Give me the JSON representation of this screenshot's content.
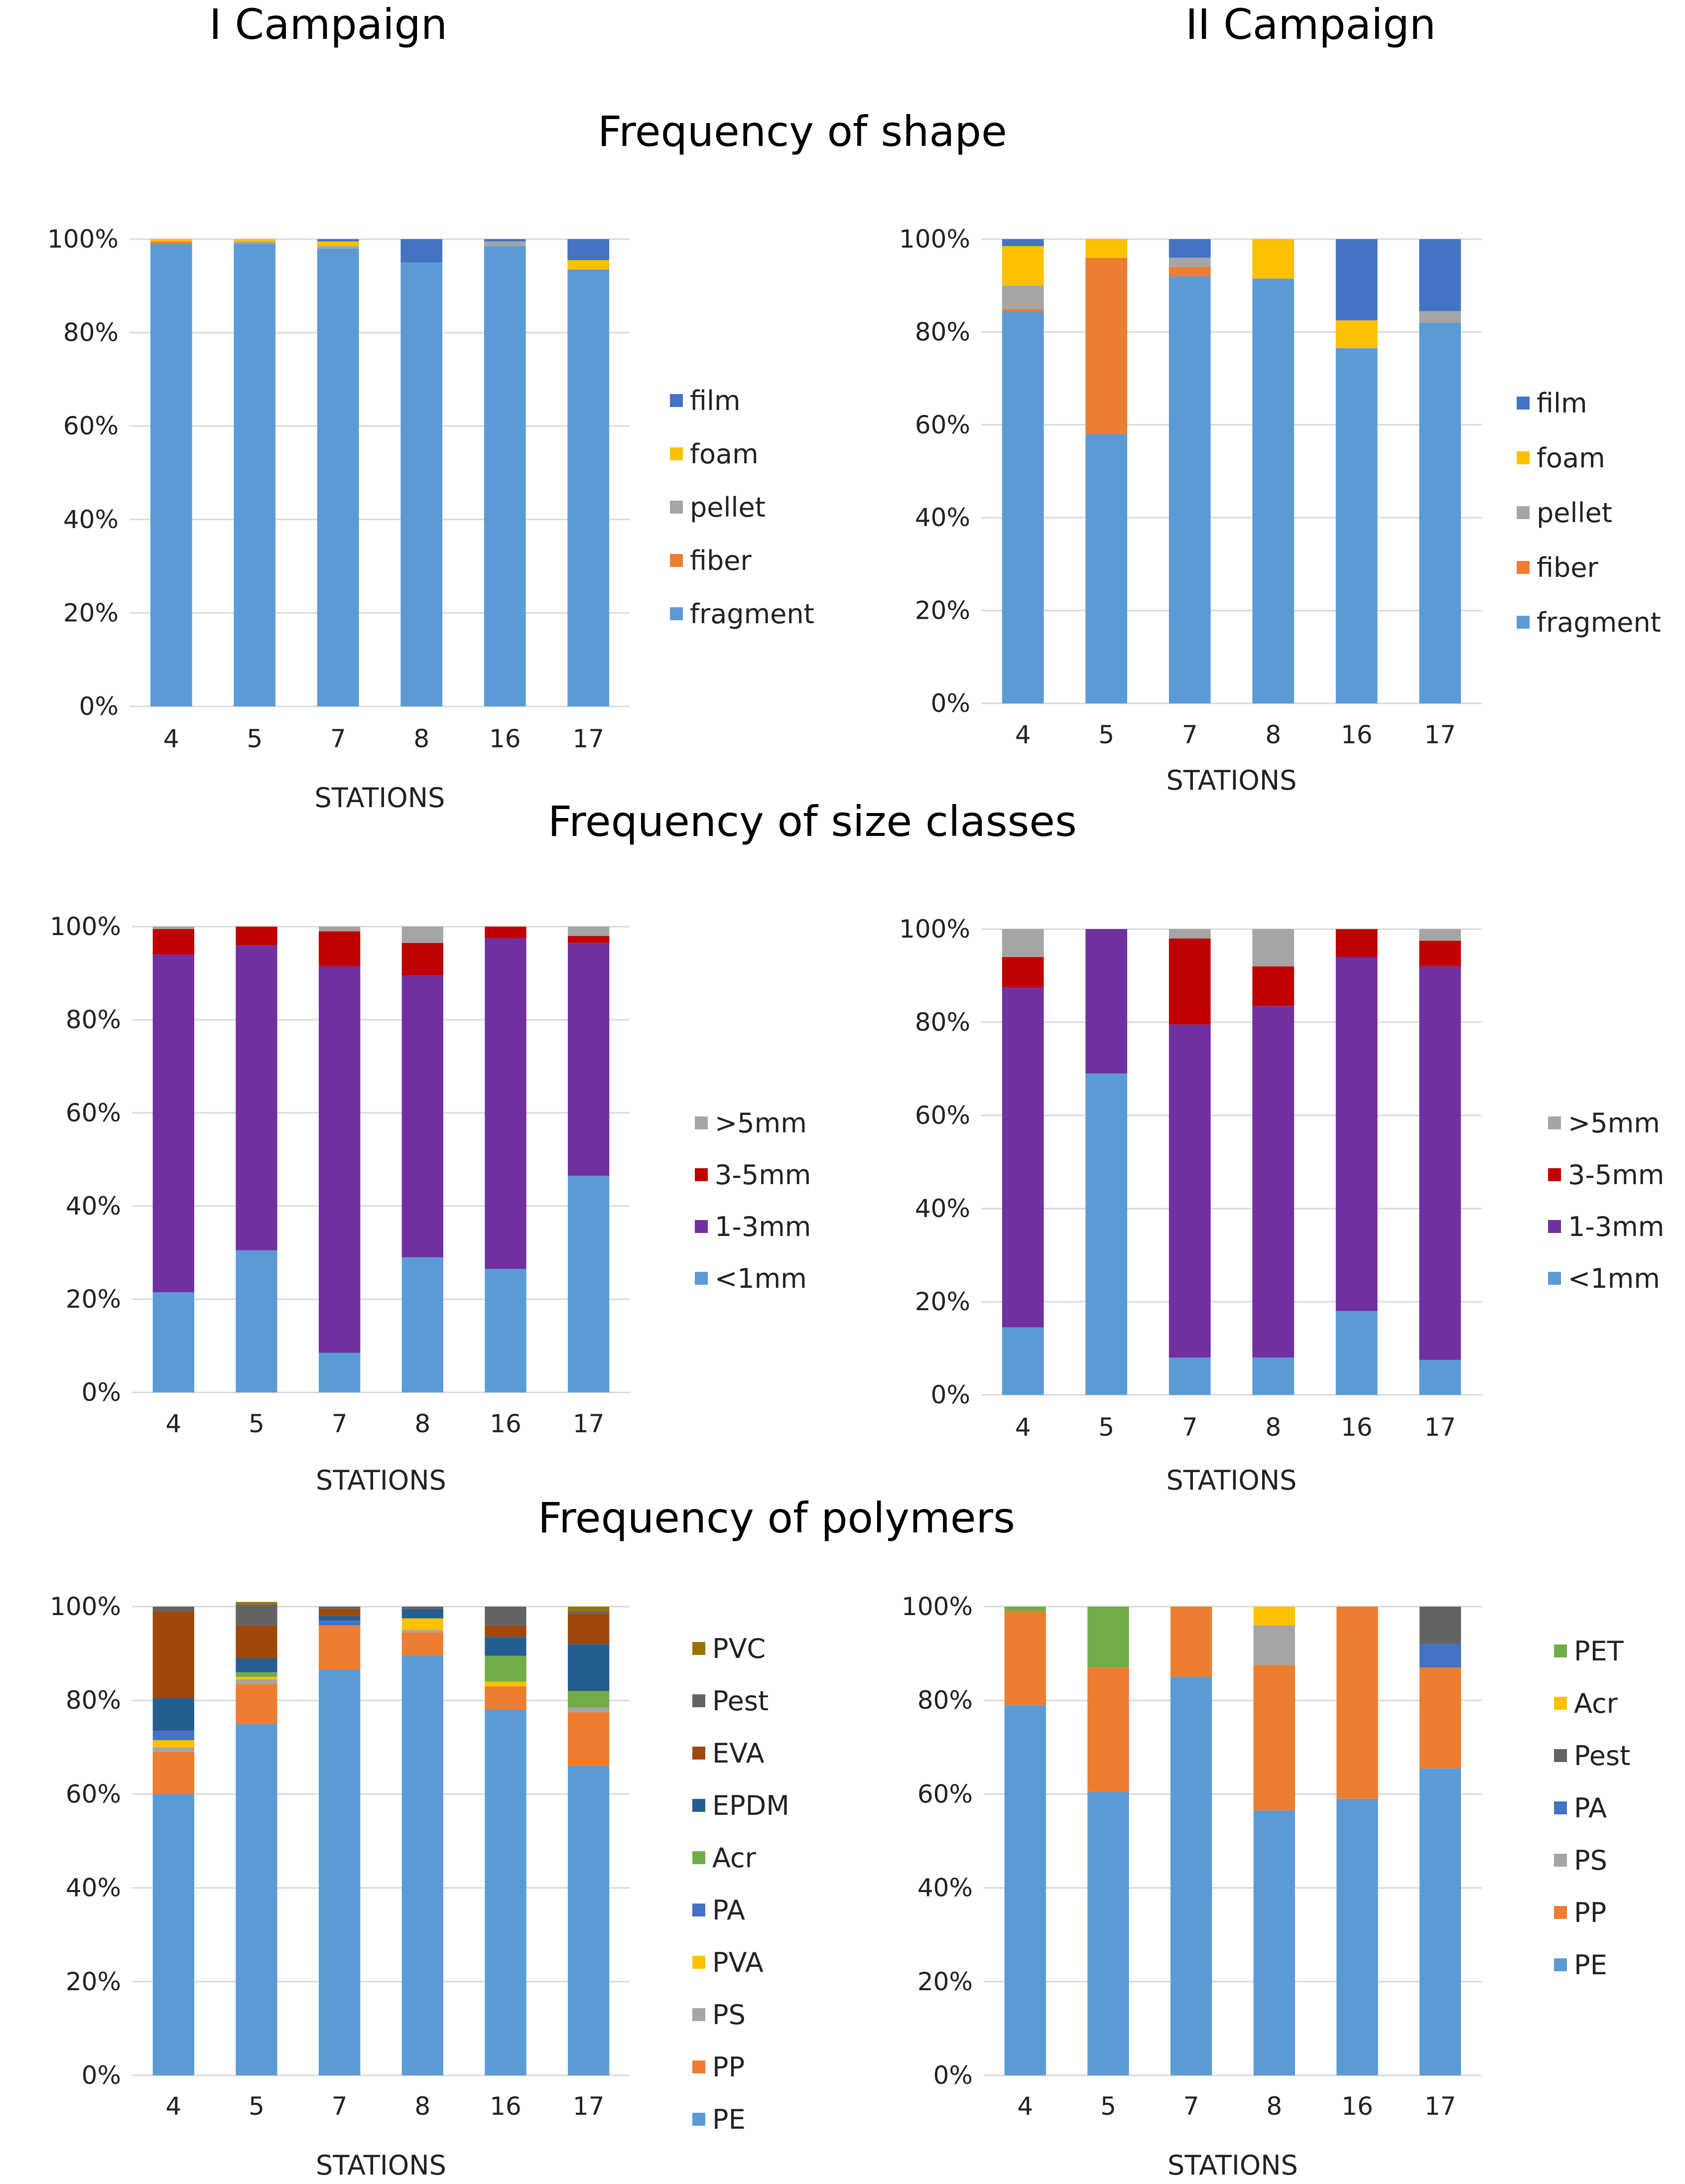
{
  "headings": {
    "campaign_1": "I Campaign",
    "campaign_2": "II Campaign",
    "shape_title": "Frequency of shape",
    "size_title": "Frequency of size classes",
    "polymer_title": "Frequency of polymers"
  },
  "colors": {
    "fragment": "#5b9bd5",
    "fiber": "#ed7d31",
    "pellet": "#a5a5a5",
    "foam": "#ffc000",
    "film": "#4472c4",
    "lt1mm": "#5b9bd5",
    "mm1_3": "#7030a0",
    "mm3_5": "#c00000",
    "gt5mm": "#a5a5a5",
    "PE": "#5b9bd5",
    "PP": "#ed7d31",
    "PS": "#a5a5a5",
    "PVA": "#ffc000",
    "PA": "#4472c4",
    "Acr": "#70ad47",
    "EPDM": "#255e91",
    "EVA": "#9e480e",
    "Pest": "#636363",
    "PVC": "#997300",
    "PET": "#70ad47"
  },
  "chart_data": [
    {
      "id": "shape-c1",
      "type": "bar",
      "stacked": true,
      "title": "Frequency of shape",
      "campaign": "I Campaign",
      "xlabel": "STATIONS",
      "ylabel": "",
      "ylim": [
        0,
        100
      ],
      "yticks": [
        "0%",
        "20%",
        "40%",
        "60%",
        "80%",
        "100%"
      ],
      "categories": [
        "4",
        "5",
        "7",
        "8",
        "16",
        "17"
      ],
      "legend_position": "right",
      "series": [
        {
          "name": "fragment",
          "color": "#5b9bd5",
          "values": [
            99,
            99,
            98,
            95,
            98.5,
            93.5
          ]
        },
        {
          "name": "fiber",
          "color": "#ed7d31",
          "values": [
            0.5,
            0,
            0,
            0,
            0,
            0
          ]
        },
        {
          "name": "pellet",
          "color": "#a5a5a5",
          "values": [
            0,
            0.5,
            0.5,
            0,
            1,
            0
          ]
        },
        {
          "name": "foam",
          "color": "#ffc000",
          "values": [
            0.5,
            0.5,
            1,
            0,
            0,
            2
          ]
        },
        {
          "name": "film",
          "color": "#4472c4",
          "values": [
            0,
            0,
            0.5,
            5,
            0.5,
            4.5
          ]
        }
      ]
    },
    {
      "id": "shape-c2",
      "type": "bar",
      "stacked": true,
      "title": "Frequency of shape",
      "campaign": "II Campaign",
      "xlabel": "STATIONS",
      "ylabel": "",
      "ylim": [
        0,
        100
      ],
      "yticks": [
        "0%",
        "20%",
        "40%",
        "60%",
        "80%",
        "100%"
      ],
      "categories": [
        "4",
        "5",
        "7",
        "8",
        "16",
        "17"
      ],
      "legend_position": "right",
      "series": [
        {
          "name": "fragment",
          "color": "#5b9bd5",
          "values": [
            84.5,
            58,
            92,
            91.5,
            76.5,
            82
          ]
        },
        {
          "name": "fiber",
          "color": "#ed7d31",
          "values": [
            0.5,
            38,
            2,
            0,
            0,
            0
          ]
        },
        {
          "name": "pellet",
          "color": "#a5a5a5",
          "values": [
            5,
            0,
            2,
            0,
            0,
            2.5
          ]
        },
        {
          "name": "foam",
          "color": "#ffc000",
          "values": [
            8.5,
            4,
            0,
            8.5,
            6,
            0
          ]
        },
        {
          "name": "film",
          "color": "#4472c4",
          "values": [
            1.5,
            0,
            4,
            0,
            17.5,
            15.5
          ]
        }
      ]
    },
    {
      "id": "size-c1",
      "type": "bar",
      "stacked": true,
      "title": "Frequency of size classes",
      "campaign": "I Campaign",
      "xlabel": "STATIONS",
      "ylabel": "",
      "ylim": [
        0,
        100
      ],
      "yticks": [
        "0%",
        "20%",
        "40%",
        "60%",
        "80%",
        "100%"
      ],
      "categories": [
        "4",
        "5",
        "7",
        "8",
        "16",
        "17"
      ],
      "legend_position": "right",
      "series": [
        {
          "name": "<1mm",
          "color": "#5b9bd5",
          "values": [
            21.5,
            30.5,
            8.5,
            29,
            26.5,
            46.5
          ]
        },
        {
          "name": "1-3mm",
          "color": "#7030a0",
          "values": [
            72.5,
            65.5,
            83,
            60.5,
            71,
            50
          ]
        },
        {
          "name": "3-5mm",
          "color": "#c00000",
          "values": [
            5.5,
            4,
            7.5,
            7,
            2.5,
            1.5
          ]
        },
        {
          "name": ">5mm",
          "color": "#a5a5a5",
          "values": [
            0.5,
            0,
            1,
            3.5,
            0,
            2
          ]
        }
      ]
    },
    {
      "id": "size-c2",
      "type": "bar",
      "stacked": true,
      "title": "Frequency of size classes",
      "campaign": "II Campaign",
      "xlabel": "STATIONS",
      "ylabel": "",
      "ylim": [
        0,
        100
      ],
      "yticks": [
        "0%",
        "20%",
        "40%",
        "60%",
        "80%",
        "100%"
      ],
      "categories": [
        "4",
        "5",
        "7",
        "8",
        "16",
        "17"
      ],
      "legend_position": "right",
      "series": [
        {
          "name": "<1mm",
          "color": "#5b9bd5",
          "values": [
            14.5,
            69,
            8,
            8,
            18,
            7.5
          ]
        },
        {
          "name": "1-3mm",
          "color": "#7030a0",
          "values": [
            73,
            31,
            71.5,
            75.5,
            76,
            84.5
          ]
        },
        {
          "name": "3-5mm",
          "color": "#c00000",
          "values": [
            6.5,
            0,
            18.5,
            8.5,
            6,
            5.5
          ]
        },
        {
          "name": ">5mm",
          "color": "#a5a5a5",
          "values": [
            6,
            0,
            2,
            8,
            0,
            2.5
          ]
        }
      ]
    },
    {
      "id": "poly-c1",
      "type": "bar",
      "stacked": true,
      "title": "Frequency of polymers",
      "campaign": "I Campaign",
      "xlabel": "STATIONS",
      "ylabel": "",
      "ylim": [
        0,
        100
      ],
      "yticks": [
        "0%",
        "20%",
        "40%",
        "60%",
        "80%",
        "100%"
      ],
      "categories": [
        "4",
        "5",
        "7",
        "8",
        "16",
        "17"
      ],
      "legend_position": "right",
      "series": [
        {
          "name": "PE",
          "color": "#5b9bd5",
          "values": [
            60,
            75,
            86.5,
            89.5,
            78,
            66
          ]
        },
        {
          "name": "PP",
          "color": "#ed7d31",
          "values": [
            9,
            8.5,
            9.5,
            5,
            5,
            11.5
          ]
        },
        {
          "name": "PS",
          "color": "#a5a5a5",
          "values": [
            1,
            1,
            0,
            0.5,
            0,
            1
          ]
        },
        {
          "name": "PVA",
          "color": "#ffc000",
          "values": [
            1.5,
            0.5,
            0,
            2.5,
            1,
            0
          ]
        },
        {
          "name": "PA",
          "color": "#4472c4",
          "values": [
            2,
            0,
            1,
            0,
            0,
            0
          ]
        },
        {
          "name": "Acr",
          "color": "#70ad47",
          "values": [
            0,
            1,
            0,
            0,
            5.5,
            3.5
          ]
        },
        {
          "name": "EPDM",
          "color": "#255e91",
          "values": [
            7,
            3,
            1,
            2,
            4,
            10
          ]
        },
        {
          "name": "EVA",
          "color": "#9e480e",
          "values": [
            18.5,
            7,
            1.5,
            0,
            2.5,
            6.5
          ]
        },
        {
          "name": "Pest",
          "color": "#636363",
          "values": [
            1,
            4.5,
            0.5,
            0.5,
            4,
            0.5
          ]
        },
        {
          "name": "PVC",
          "color": "#997300",
          "values": [
            0,
            0.5,
            0,
            0,
            0,
            1
          ]
        }
      ]
    },
    {
      "id": "poly-c2",
      "type": "bar",
      "stacked": true,
      "title": "Frequency of polymers",
      "campaign": "II Campaign",
      "xlabel": "STATIONS",
      "ylabel": "",
      "ylim": [
        0,
        100
      ],
      "yticks": [
        "0%",
        "20%",
        "40%",
        "60%",
        "80%",
        "100%"
      ],
      "categories": [
        "4",
        "5",
        "7",
        "8",
        "16",
        "17"
      ],
      "legend_position": "right",
      "series": [
        {
          "name": "PE",
          "color": "#5b9bd5",
          "values": [
            79,
            60.5,
            85,
            56.5,
            59,
            65.5
          ]
        },
        {
          "name": "PP",
          "color": "#ed7d31",
          "values": [
            20,
            26.5,
            15,
            31,
            41,
            21.5
          ]
        },
        {
          "name": "PS",
          "color": "#a5a5a5",
          "values": [
            0,
            0,
            0,
            8.5,
            0,
            0
          ]
        },
        {
          "name": "PA",
          "color": "#4472c4",
          "values": [
            0,
            0,
            0,
            0,
            0,
            5
          ]
        },
        {
          "name": "Pest",
          "color": "#636363",
          "values": [
            0,
            0,
            0,
            0,
            0,
            8
          ]
        },
        {
          "name": "Acr",
          "color": "#ffc000",
          "values": [
            0,
            0,
            0,
            4,
            0,
            0
          ]
        },
        {
          "name": "PET",
          "color": "#70ad47",
          "values": [
            1,
            13,
            0,
            0,
            0,
            0
          ]
        }
      ]
    }
  ]
}
